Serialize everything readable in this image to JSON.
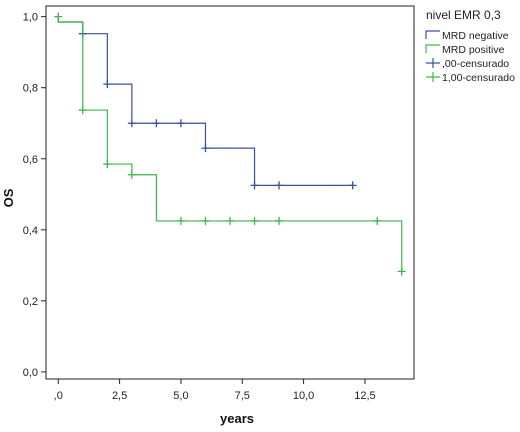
{
  "chart_data": {
    "type": "line",
    "step": true,
    "xlabel": "years",
    "ylabel": "OS",
    "xlim": [
      -0.5,
      14.5
    ],
    "ylim": [
      -0.02,
      1.03
    ],
    "xticks": [
      0,
      2.5,
      5,
      7.5,
      10,
      12.5
    ],
    "xtick_labels": [
      ",0",
      "2,5",
      "5,0",
      "7,5",
      "10,0",
      "12,5"
    ],
    "yticks": [
      0,
      0.2,
      0.4,
      0.6,
      0.8,
      1.0
    ],
    "ytick_labels": [
      "0,0",
      "0,2",
      "0,4",
      "0,6",
      "0,8",
      "1,0"
    ],
    "grid": false,
    "legend": {
      "title": "nivel EMR 0,3",
      "placement": "outside-top-right",
      "entries": [
        "MRD negative",
        "MRD positive",
        ",00-censurado",
        "1,00-censurado"
      ]
    },
    "series": [
      {
        "name": "MRD negative",
        "color": "#3a4fa0",
        "steps": [
          [
            0,
            1.0
          ],
          [
            0,
            0.985
          ],
          [
            1,
            0.952
          ],
          [
            2,
            0.81
          ],
          [
            3,
            0.7
          ],
          [
            6,
            0.63
          ],
          [
            8,
            0.525
          ],
          [
            12,
            0.525
          ]
        ],
        "censored": [
          [
            1,
            0.952
          ],
          [
            2,
            0.81
          ],
          [
            3,
            0.7
          ],
          [
            4,
            0.7
          ],
          [
            5,
            0.7
          ],
          [
            6,
            0.63
          ],
          [
            8,
            0.525
          ],
          [
            9,
            0.525
          ],
          [
            12,
            0.525
          ]
        ]
      },
      {
        "name": "MRD positive",
        "color": "#3cb84a",
        "steps": [
          [
            0,
            1.0
          ],
          [
            0,
            0.985
          ],
          [
            1,
            0.737
          ],
          [
            2,
            0.585
          ],
          [
            3,
            0.555
          ],
          [
            4,
            0.425
          ],
          [
            14,
            0.283
          ]
        ],
        "censored": [
          [
            0,
            1.0
          ],
          [
            1,
            0.737
          ],
          [
            2,
            0.585
          ],
          [
            3,
            0.555
          ],
          [
            5,
            0.425
          ],
          [
            6,
            0.425
          ],
          [
            7,
            0.425
          ],
          [
            8,
            0.425
          ],
          [
            9,
            0.425
          ],
          [
            13,
            0.425
          ],
          [
            14,
            0.283
          ]
        ]
      }
    ]
  }
}
